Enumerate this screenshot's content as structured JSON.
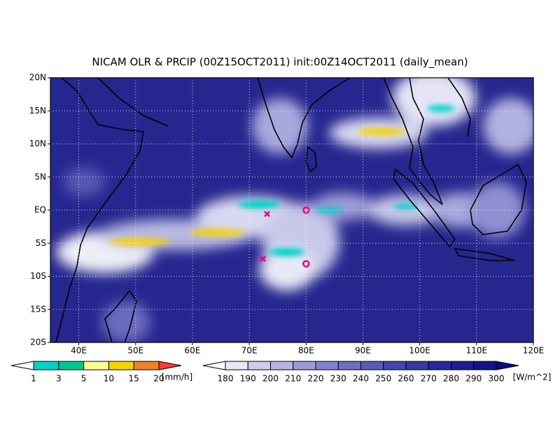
{
  "title": "NICAM OLR & PRCIP (00Z15OCT2011) init:00Z14OCT2011 (daily_mean)",
  "lat_labels": [
    "20N",
    "15N",
    "10N",
    "5N",
    "EQ",
    "5S",
    "10S",
    "15S",
    "20S"
  ],
  "lon_labels": [
    "40E",
    "50E",
    "60E",
    "70E",
    "80E",
    "90E",
    "100E",
    "110E",
    "120E"
  ],
  "precip_legend": {
    "labels": [
      1,
      3,
      5,
      10,
      15,
      20
    ],
    "unit": "[mm/h]",
    "colors": [
      "#ffffff",
      "#00d2c8",
      "#00c88c",
      "#ffff96",
      "#f5d200",
      "#f08228",
      "#fa3c3c"
    ]
  },
  "olr_legend": {
    "labels": [
      180,
      190,
      200,
      210,
      220,
      230,
      240,
      250,
      260,
      270,
      280,
      290,
      300
    ],
    "unit": "[W/m^2]",
    "colors": [
      "#ffffff",
      "#e6e6f5",
      "#cdcdeb",
      "#b4b4e1",
      "#9b9bd7",
      "#8282cd",
      "#6e6ec3",
      "#5a5ab9",
      "#4646af",
      "#3737a5",
      "#28289b",
      "#1e1e91",
      "#141487",
      "#0a0a7d"
    ]
  }
}
